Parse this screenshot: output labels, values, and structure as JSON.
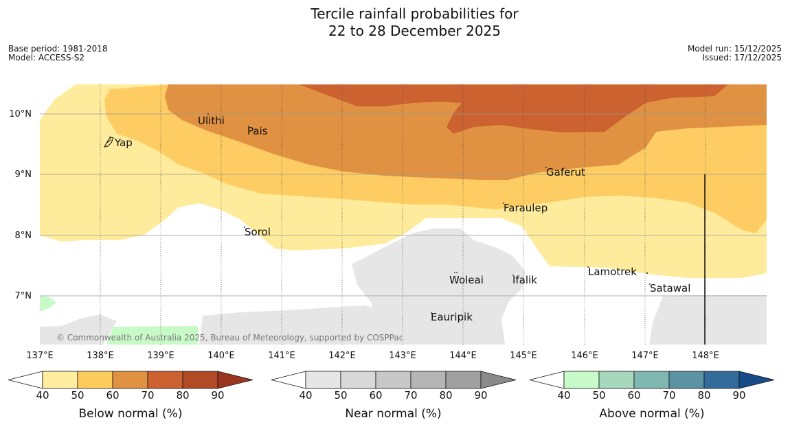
{
  "title": {
    "line1": "Tercile rainfall probabilities for",
    "line2": "22 to 28 December 2025"
  },
  "meta": {
    "base_period": "Base period: 1981-2018",
    "model": "Model: ACCESS-S2",
    "model_run": "Model run: 15/12/2025",
    "issued": "Issued: 17/12/2025"
  },
  "map": {
    "lon_ticks": [
      "137°E",
      "138°E",
      "139°E",
      "140°E",
      "141°E",
      "142°E",
      "143°E",
      "144°E",
      "145°E",
      "146°E",
      "147°E",
      "148°E"
    ],
    "lat_ticks": [
      "10°N",
      "9°N",
      "8°N",
      "7°N"
    ],
    "places": [
      {
        "name": "Ulithi"
      },
      {
        "name": "Pais"
      },
      {
        "name": "Yap"
      },
      {
        "name": "Gaferut"
      },
      {
        "name": "Faraulep"
      },
      {
        "name": "Sorol"
      },
      {
        "name": "Lamotrek"
      },
      {
        "name": "Woleai"
      },
      {
        "name": "Ifalik"
      },
      {
        "name": "Satawal"
      },
      {
        "name": "Eauripik"
      }
    ],
    "copyright": "© Commonwealth of Australia 2025, Bureau of Meteorology, supported by COSPPac",
    "colors": {
      "below_40": "#ffeb9c",
      "below_50": "#fdcd63",
      "below_60": "#e09141",
      "below_70": "#cc6230",
      "near_40": "#e6e6e6",
      "above_40": "#c8fac8",
      "white": "#ffffff"
    }
  },
  "colorbars": [
    {
      "label": "Below normal (%)",
      "ticks": [
        "40",
        "50",
        "60",
        "70",
        "80",
        "90"
      ],
      "colors": [
        "#ffeda0",
        "#fecc5c",
        "#e09141",
        "#cc6230",
        "#b04b26",
        "#9a3620"
      ]
    },
    {
      "label": "Near normal (%)",
      "ticks": [
        "40",
        "50",
        "60",
        "70",
        "80",
        "90"
      ],
      "colors": [
        "#e6e6e6",
        "#d9d9d9",
        "#c8c8c8",
        "#b5b5b5",
        "#a0a0a0",
        "#8a8a8a"
      ]
    },
    {
      "label": "Above normal (%)",
      "ticks": [
        "40",
        "50",
        "60",
        "70",
        "80",
        "90"
      ],
      "colors": [
        "#c9fbca",
        "#a6d8be",
        "#80b7b0",
        "#5b93a2",
        "#336b9b",
        "#174c88"
      ]
    }
  ]
}
